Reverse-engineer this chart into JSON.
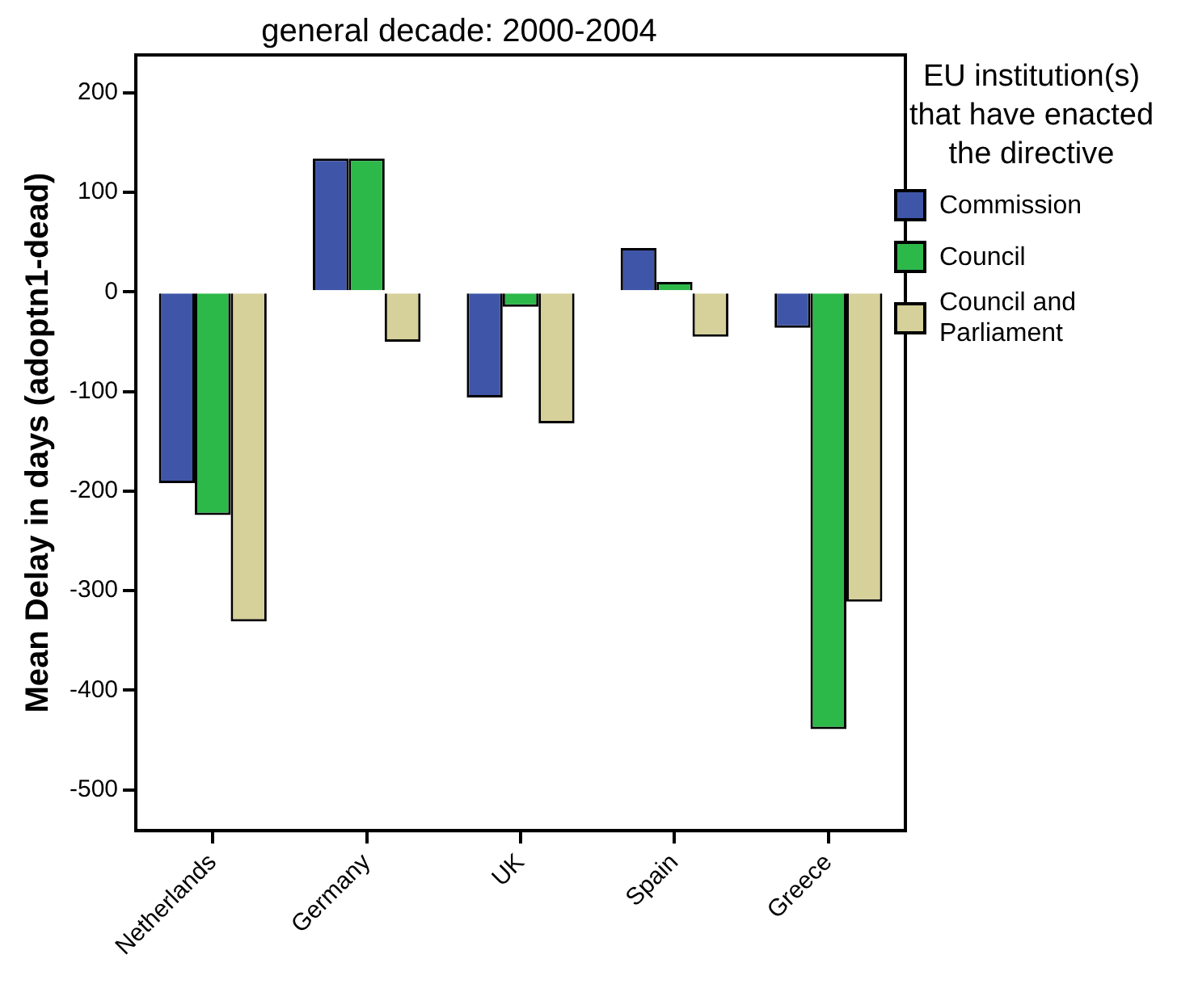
{
  "chart_data": {
    "type": "bar",
    "title": "general decade: 2000-2004",
    "ylabel": "Mean Delay in days (adoptn1-dead)",
    "legend_title": "EU institution(s) that have enacted the directive",
    "categories": [
      "Netherlands",
      "Germany",
      "UK",
      "Spain",
      "Greece"
    ],
    "series": [
      {
        "name": "Commission",
        "color": "#3f56a8",
        "values": [
          -192,
          134,
          -106,
          44,
          -36
        ]
      },
      {
        "name": "Council",
        "color": "#2db84a",
        "values": [
          -224,
          134,
          -15,
          10,
          -439
        ]
      },
      {
        "name": "Council and Parliament",
        "color": "#d6d09a",
        "values": [
          -331,
          -50,
          -132,
          -45,
          -311
        ]
      }
    ],
    "ylim": [
      -541,
      238
    ],
    "yticks": [
      -500,
      -400,
      -300,
      -200,
      -100,
      0,
      100,
      200
    ],
    "grid": false,
    "legend": "right"
  }
}
